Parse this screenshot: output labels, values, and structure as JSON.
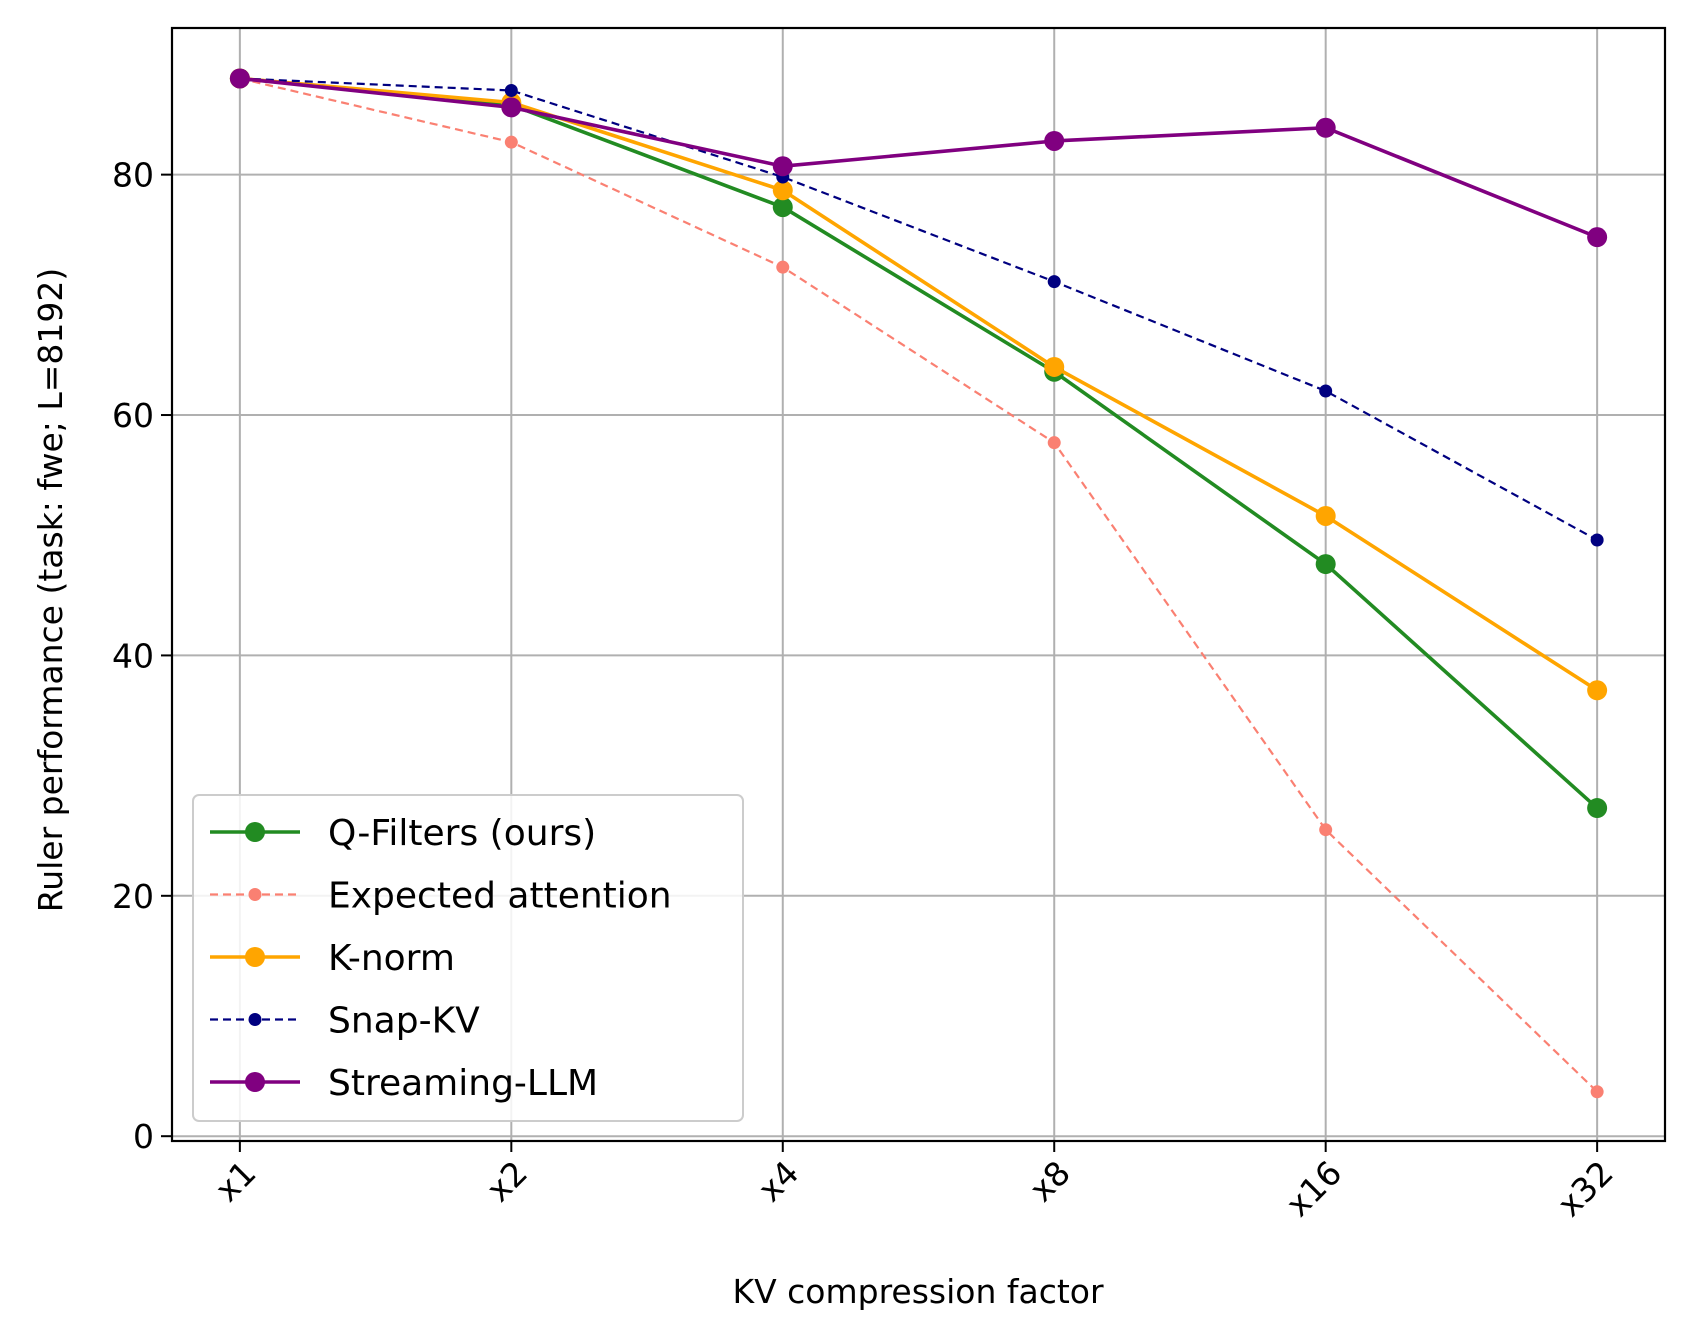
{
  "chart_data": {
    "type": "line",
    "title": "",
    "xlabel": "KV compression factor",
    "ylabel": "Ruler performance (task: fwe; L=8192)",
    "categories": [
      "x1",
      "x2",
      "x4",
      "x8",
      "x16",
      "x32"
    ],
    "x": [
      1,
      2,
      3,
      4,
      5,
      6
    ],
    "xlim": [
      0.75,
      6.25
    ],
    "ylim": [
      -0.4,
      92.2
    ],
    "yticks": [
      0,
      20,
      40,
      60,
      80
    ],
    "grid": true,
    "legend_position": "lower-left",
    "series": [
      {
        "name": "Q-Filters (ours)",
        "color": "#228B22",
        "style": "solid",
        "marker": "large",
        "values": [
          88.0,
          85.8,
          77.3,
          63.6,
          47.6,
          27.3
        ]
      },
      {
        "name": "Expected attention",
        "color": "#FA8072",
        "style": "dashed",
        "marker": "small",
        "values": [
          88.0,
          82.7,
          72.3,
          57.7,
          25.5,
          3.7
        ]
      },
      {
        "name": "K-norm",
        "color": "#FFA500",
        "style": "solid",
        "marker": "large",
        "values": [
          88.0,
          86.0,
          78.7,
          64.0,
          51.6,
          37.1
        ]
      },
      {
        "name": "Snap-KV",
        "color": "#000080",
        "style": "dashed",
        "marker": "small",
        "values": [
          88.0,
          87.0,
          79.8,
          71.1,
          62.0,
          49.6
        ]
      },
      {
        "name": "Streaming-LLM",
        "color": "#800080",
        "style": "solid",
        "marker": "large",
        "values": [
          88.0,
          85.6,
          80.7,
          82.8,
          83.9,
          74.8
        ]
      }
    ]
  }
}
